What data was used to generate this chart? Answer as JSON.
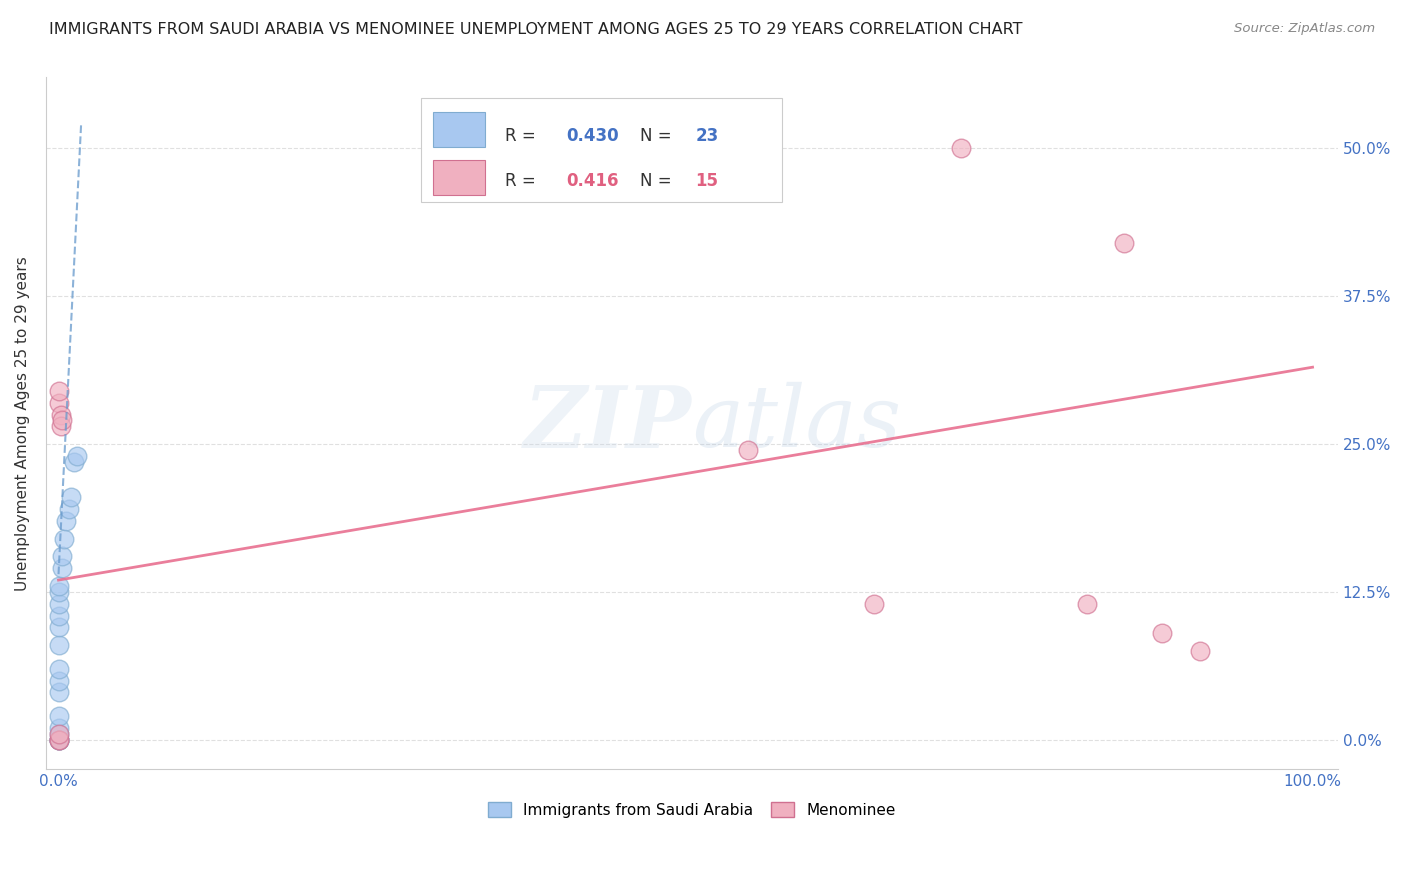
{
  "title": "IMMIGRANTS FROM SAUDI ARABIA VS MENOMINEE UNEMPLOYMENT AMONG AGES 25 TO 29 YEARS CORRELATION CHART",
  "source": "Source: ZipAtlas.com",
  "ylabel": "Unemployment Among Ages 25 to 29 years",
  "watermark_zip": "ZIP",
  "watermark_atlas": "atlas",
  "blue_scatter": [
    [
      0.0,
      0.0
    ],
    [
      0.0,
      0.0
    ],
    [
      0.0,
      0.0
    ],
    [
      0.0,
      0.005
    ],
    [
      0.0,
      0.01
    ],
    [
      0.0,
      0.02
    ],
    [
      0.0,
      0.04
    ],
    [
      0.0,
      0.05
    ],
    [
      0.0,
      0.06
    ],
    [
      0.0,
      0.08
    ],
    [
      0.0,
      0.095
    ],
    [
      0.0,
      0.105
    ],
    [
      0.0,
      0.115
    ],
    [
      0.0,
      0.125
    ],
    [
      0.0,
      0.13
    ],
    [
      0.003,
      0.145
    ],
    [
      0.003,
      0.155
    ],
    [
      0.004,
      0.17
    ],
    [
      0.006,
      0.185
    ],
    [
      0.008,
      0.195
    ],
    [
      0.01,
      0.205
    ],
    [
      0.012,
      0.235
    ],
    [
      0.015,
      0.24
    ]
  ],
  "pink_scatter": [
    [
      0.0,
      0.0
    ],
    [
      0.0,
      0.0
    ],
    [
      0.0,
      0.005
    ],
    [
      0.0,
      0.285
    ],
    [
      0.0,
      0.295
    ],
    [
      0.002,
      0.275
    ],
    [
      0.002,
      0.265
    ],
    [
      0.003,
      0.27
    ],
    [
      0.55,
      0.245
    ],
    [
      0.65,
      0.115
    ],
    [
      0.72,
      0.5
    ],
    [
      0.82,
      0.115
    ],
    [
      0.85,
      0.42
    ],
    [
      0.88,
      0.09
    ],
    [
      0.91,
      0.075
    ]
  ],
  "blue_trendline": {
    "x": [
      0.0,
      0.018
    ],
    "y": [
      0.14,
      0.52
    ],
    "color": "#6699cc",
    "linestyle": "--",
    "linewidth": 1.5,
    "alpha": 0.75
  },
  "pink_trendline": {
    "x": [
      0.0,
      1.0
    ],
    "y": [
      0.135,
      0.315
    ],
    "color": "#e87090",
    "linestyle": "-",
    "linewidth": 2.0,
    "alpha": 0.9
  },
  "xlim": [
    -0.01,
    1.02
  ],
  "ylim": [
    -0.025,
    0.56
  ],
  "xticks": [
    0.0,
    0.25,
    0.5,
    0.75,
    1.0
  ],
  "xticklabels": [
    "0.0%",
    "",
    "",
    "",
    "100.0%"
  ],
  "yticks": [
    0.0,
    0.125,
    0.25,
    0.375,
    0.5
  ],
  "yticklabels_right": [
    "0.0%",
    "12.5%",
    "25.0%",
    "37.5%",
    "50.0%"
  ],
  "tick_color": "#4472c4",
  "background_color": "#ffffff",
  "grid_color": "#dddddd",
  "title_fontsize": 11.5,
  "source_fontsize": 9.5,
  "axis_label_fontsize": 11,
  "tick_fontsize": 11,
  "legend_R_color_blue": "#4472c4",
  "legend_R_color_pink": "#e06080",
  "blue_dot_color": "#a8c8f0",
  "blue_dot_edge": "#80acd0",
  "pink_dot_color": "#f0b0c0",
  "pink_dot_edge": "#d07090"
}
